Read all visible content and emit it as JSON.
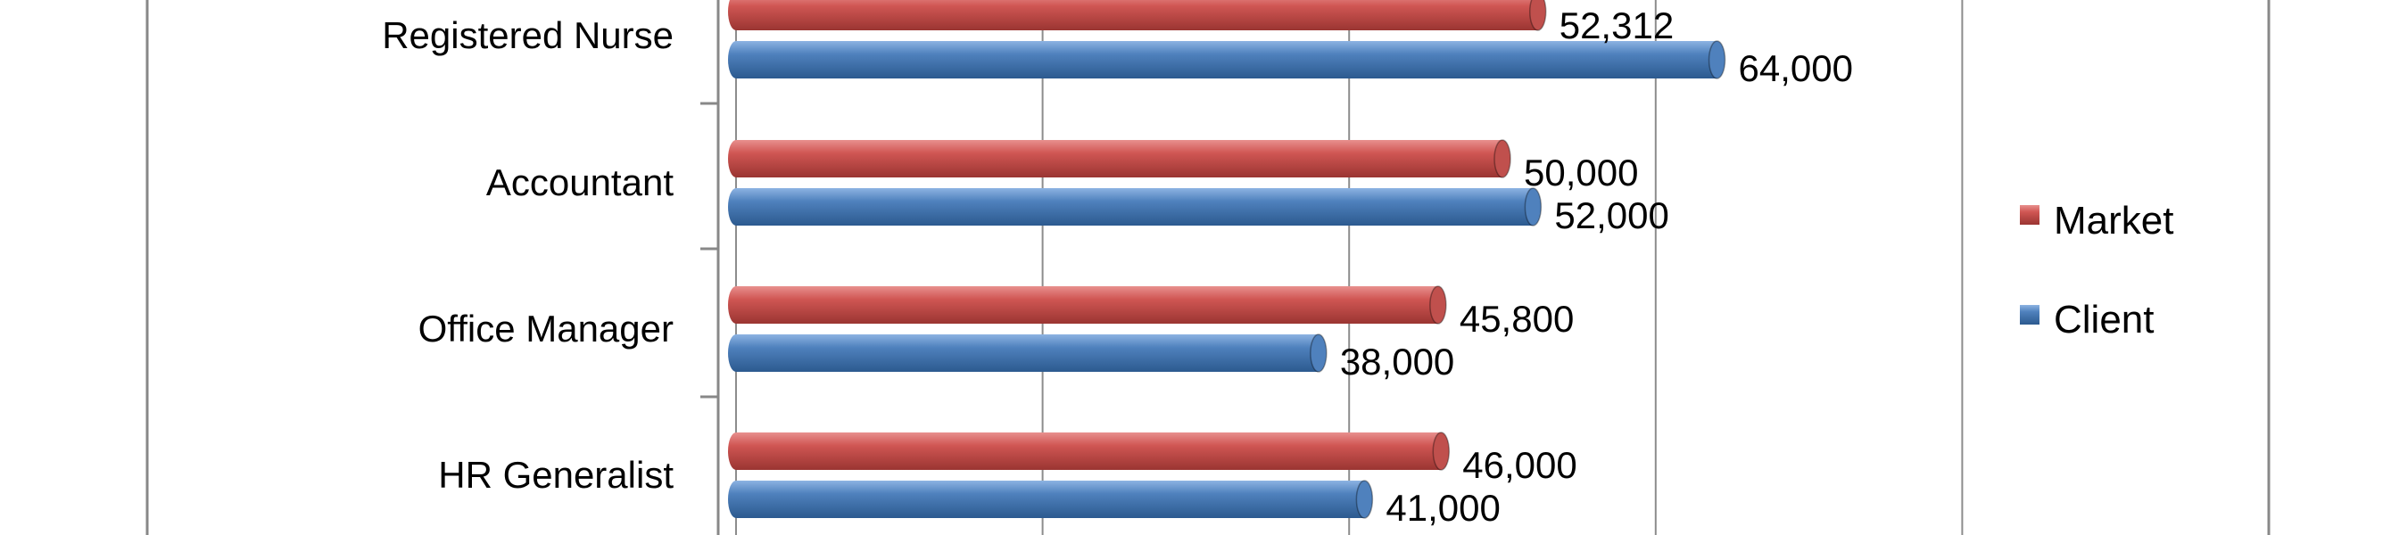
{
  "chart_data": {
    "type": "bar",
    "orientation": "horizontal",
    "style": "3d-cylinder",
    "categories": [
      "Registered Nurse",
      "Accountant",
      "Office Manager",
      "HR Generalist"
    ],
    "series": [
      {
        "name": "Market",
        "color": "#c0504d",
        "values": [
          52312,
          50000,
          45800,
          46000
        ]
      },
      {
        "name": "Client",
        "color": "#4f81bd",
        "values": [
          64000,
          52000,
          38000,
          41000
        ]
      }
    ],
    "data_labels": {
      "Market": [
        "52,312",
        "50,000",
        "45,800",
        "46,000"
      ],
      "Client": [
        "64,000",
        "52,000",
        "38,000",
        "41,000"
      ]
    },
    "xlim": [
      0,
      100000
    ],
    "grid": true,
    "legend_placement": "right",
    "legend_order": [
      "Market",
      "Client"
    ]
  }
}
